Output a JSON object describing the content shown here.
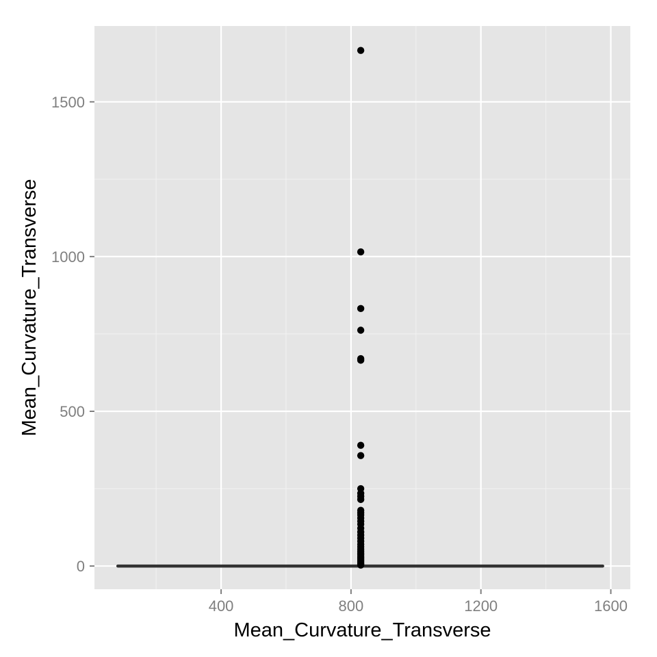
{
  "chart_data": {
    "type": "scatter",
    "title": "",
    "xlabel": "Mean_Curvature_Transverse",
    "ylabel": "Mean_Curvature_Transverse",
    "xlim": [
      10,
      1660
    ],
    "ylim": [
      -75,
      1745
    ],
    "x_ticks": [
      400,
      800,
      1200,
      1600
    ],
    "x_tick_labels": [
      "400",
      "800",
      "1200",
      "1600"
    ],
    "x_minor_ticks": [
      200,
      600,
      1000,
      1400
    ],
    "y_ticks": [
      0,
      500,
      1000,
      1500
    ],
    "y_tick_labels": [
      "0",
      "500",
      "1000",
      "1500"
    ],
    "y_minor_ticks": [
      250,
      750,
      1250
    ],
    "grid": true,
    "background_color": "#E5E5E5",
    "grid_color": "#FFFFFF",
    "point_color": "#000000",
    "line_color": "#333333",
    "series": [
      {
        "type": "line",
        "x": [
          82,
          1575
        ],
        "y": [
          0,
          0
        ]
      },
      {
        "type": "scatter",
        "x": [
          830,
          830,
          830,
          830,
          830,
          830,
          830,
          830,
          830,
          830,
          830,
          830,
          830,
          830,
          830,
          830,
          830,
          830,
          830,
          830,
          830,
          830,
          830,
          830,
          830,
          830,
          830,
          830,
          830,
          830,
          830,
          830,
          830,
          830,
          830,
          830
        ],
        "y": [
          1666,
          1015,
          832,
          762,
          670,
          665,
          390,
          357,
          250,
          235,
          225,
          215,
          180,
          172,
          165,
          155,
          145,
          135,
          122,
          110,
          100,
          90,
          80,
          70,
          62,
          55,
          48,
          42,
          36,
          30,
          25,
          20,
          15,
          10,
          6,
          3
        ]
      }
    ]
  }
}
